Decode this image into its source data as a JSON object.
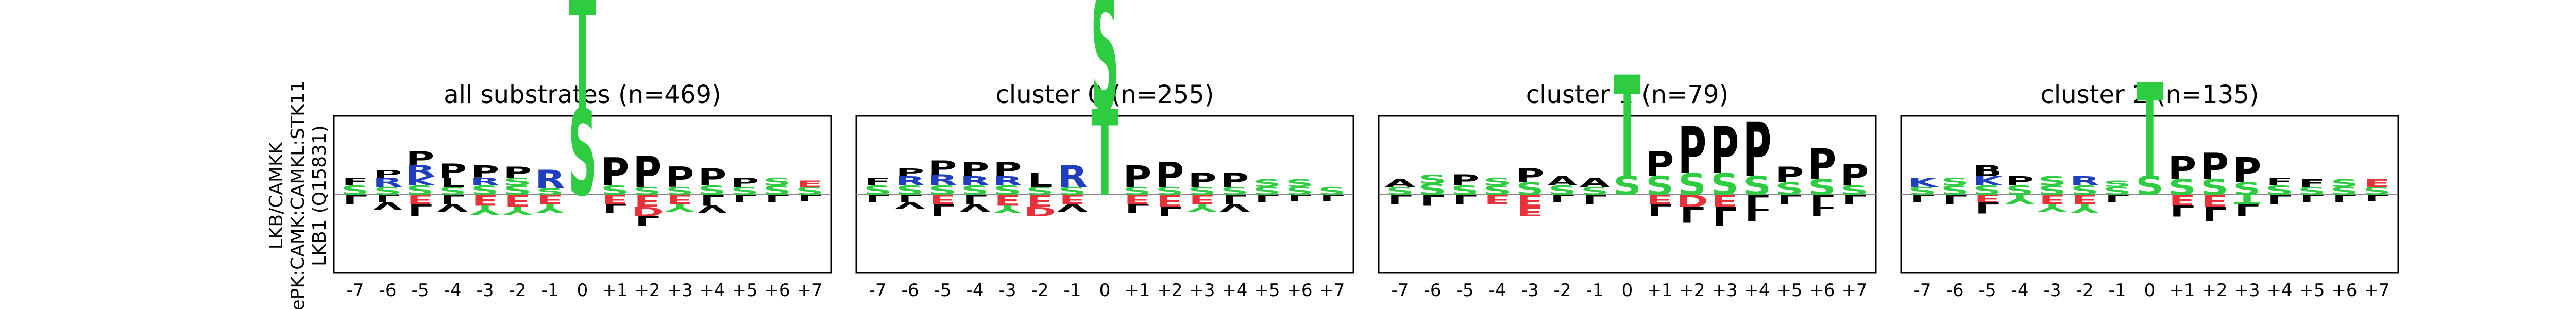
{
  "figure": {
    "ylabel_lines": [
      "LKB/CAMKK",
      "ePK:CAMK:CAMKL:STK11",
      "LKB1 (Q15831)"
    ]
  },
  "colors": {
    "S": "#2ecc40",
    "T": "#2ecc40",
    "G": "#2ecc40",
    "Y": "#2ecc40",
    "C": "#2ecc40",
    "N": "#b04fd4",
    "Q": "#b04fd4",
    "K": "#1f3fbf",
    "R": "#1f3fbf",
    "H": "#1f3fbf",
    "D": "#e8313a",
    "E": "#e8313a",
    "P": "#000000",
    "L": "#000000",
    "I": "#000000",
    "V": "#000000",
    "A": "#000000",
    "M": "#000000",
    "F": "#000000",
    "W": "#000000"
  },
  "chart_data": [
    {
      "type": "sequence-logo",
      "title": "all substrates (n=469)",
      "positions": [
        "-7",
        "-6",
        "-5",
        "-4",
        "-3",
        "-2",
        "-1",
        "0",
        "+1",
        "+2",
        "+3",
        "+4",
        "+5",
        "+6",
        "+7"
      ],
      "up": [
        [
          [
            "S",
            0.06
          ],
          [
            "F",
            0.05
          ]
        ],
        [
          [
            "S",
            0.05
          ],
          [
            "R",
            0.06
          ],
          [
            "P",
            0.05
          ]
        ],
        [
          [
            "S",
            0.06
          ],
          [
            "K",
            0.06
          ],
          [
            "R",
            0.07
          ],
          [
            "P",
            0.09
          ]
        ],
        [
          [
            "S",
            0.05
          ],
          [
            "L",
            0.06
          ],
          [
            "P",
            0.09
          ]
        ],
        [
          [
            "S",
            0.06
          ],
          [
            "R",
            0.05
          ],
          [
            "P",
            0.08
          ]
        ],
        [
          [
            "S",
            0.06
          ],
          [
            "S",
            0.05
          ],
          [
            "P",
            0.07
          ]
        ],
        [
          [
            "S",
            0.04
          ],
          [
            "R",
            0.12
          ]
        ],
        [
          [
            "S",
            0.55
          ],
          [
            "T",
            0.75
          ]
        ],
        [
          [
            "S",
            0.06
          ],
          [
            "P",
            0.18
          ]
        ],
        [
          [
            "S",
            0.05
          ],
          [
            "P",
            0.2
          ]
        ],
        [
          [
            "S",
            0.05
          ],
          [
            "P",
            0.13
          ]
        ],
        [
          [
            "S",
            0.06
          ],
          [
            "P",
            0.11
          ]
        ],
        [
          [
            "S",
            0.05
          ],
          [
            "P",
            0.06
          ]
        ],
        [
          [
            "S",
            0.06
          ],
          [
            "S",
            0.05
          ]
        ],
        [
          [
            "S",
            0.05
          ],
          [
            "E",
            0.04
          ]
        ]
      ],
      "down": [
        [
          [
            "L",
            0.06
          ]
        ],
        [
          [
            "L",
            0.05
          ],
          [
            "V",
            0.05
          ]
        ],
        [
          [
            "E",
            0.06
          ],
          [
            "L",
            0.08
          ]
        ],
        [
          [
            "L",
            0.06
          ],
          [
            "V",
            0.05
          ]
        ],
        [
          [
            "E",
            0.07
          ],
          [
            "Y",
            0.06
          ]
        ],
        [
          [
            "E",
            0.08
          ],
          [
            "Y",
            0.05
          ]
        ],
        [
          [
            "E",
            0.06
          ],
          [
            "Y",
            0.06
          ]
        ],
        [],
        [
          [
            "E",
            0.06
          ],
          [
            "L",
            0.06
          ]
        ],
        [
          [
            "E",
            0.08
          ],
          [
            "D",
            0.06
          ],
          [
            "L",
            0.06
          ]
        ],
        [
          [
            "E",
            0.06
          ],
          [
            "Y",
            0.05
          ]
        ],
        [
          [
            "L",
            0.07
          ],
          [
            "V",
            0.05
          ]
        ],
        [
          [
            "L",
            0.05
          ]
        ],
        [
          [
            "L",
            0.05
          ]
        ],
        [
          [
            "L",
            0.04
          ]
        ]
      ]
    },
    {
      "type": "sequence-logo",
      "title": "cluster 0 (n=255)",
      "positions": [
        "-7",
        "-6",
        "-5",
        "-4",
        "-3",
        "-2",
        "-1",
        "0",
        "+1",
        "+2",
        "+3",
        "+4",
        "+5",
        "+6",
        "+7"
      ],
      "up": [
        [
          [
            "S",
            0.06
          ],
          [
            "F",
            0.05
          ]
        ],
        [
          [
            "S",
            0.06
          ],
          [
            "R",
            0.06
          ],
          [
            "P",
            0.05
          ]
        ],
        [
          [
            "S",
            0.06
          ],
          [
            "R",
            0.07
          ],
          [
            "P",
            0.09
          ]
        ],
        [
          [
            "S",
            0.06
          ],
          [
            "R",
            0.06
          ],
          [
            "P",
            0.09
          ]
        ],
        [
          [
            "S",
            0.06
          ],
          [
            "R",
            0.06
          ],
          [
            "P",
            0.09
          ]
        ],
        [
          [
            "S",
            0.05
          ],
          [
            "L",
            0.09
          ]
        ],
        [
          [
            "S",
            0.05
          ],
          [
            "R",
            0.14
          ]
        ],
        [
          [
            "T",
            0.55
          ],
          [
            "S",
            0.75
          ]
        ],
        [
          [
            "S",
            0.05
          ],
          [
            "P",
            0.14
          ]
        ],
        [
          [
            "S",
            0.05
          ],
          [
            "P",
            0.16
          ]
        ],
        [
          [
            "S",
            0.05
          ],
          [
            "P",
            0.09
          ]
        ],
        [
          [
            "S",
            0.05
          ],
          [
            "P",
            0.09
          ]
        ],
        [
          [
            "S",
            0.05
          ],
          [
            "S",
            0.05
          ]
        ],
        [
          [
            "S",
            0.05
          ],
          [
            "S",
            0.05
          ]
        ],
        [
          [
            "S",
            0.05
          ]
        ]
      ],
      "down": [
        [
          [
            "L",
            0.05
          ]
        ],
        [
          [
            "L",
            0.05
          ],
          [
            "V",
            0.04
          ]
        ],
        [
          [
            "E",
            0.06
          ],
          [
            "L",
            0.08
          ]
        ],
        [
          [
            "L",
            0.06
          ],
          [
            "V",
            0.05
          ]
        ],
        [
          [
            "E",
            0.07
          ],
          [
            "Y",
            0.05
          ]
        ],
        [
          [
            "E",
            0.08
          ],
          [
            "D",
            0.06
          ]
        ],
        [
          [
            "E",
            0.06
          ],
          [
            "V",
            0.05
          ]
        ],
        [],
        [
          [
            "E",
            0.06
          ],
          [
            "L",
            0.06
          ]
        ],
        [
          [
            "E",
            0.08
          ],
          [
            "L",
            0.06
          ]
        ],
        [
          [
            "E",
            0.06
          ],
          [
            "Y",
            0.05
          ]
        ],
        [
          [
            "L",
            0.06
          ],
          [
            "V",
            0.05
          ]
        ],
        [
          [
            "L",
            0.05
          ]
        ],
        [
          [
            "L",
            0.04
          ]
        ],
        [
          [
            "L",
            0.04
          ]
        ]
      ]
    },
    {
      "type": "sequence-logo",
      "title": "cluster 1 (n=79)",
      "positions": [
        "-7",
        "-6",
        "-5",
        "-4",
        "-3",
        "-2",
        "-1",
        "0",
        "+1",
        "+2",
        "+3",
        "+4",
        "+5",
        "+6",
        "+7"
      ],
      "up": [
        [
          [
            "S",
            0.05
          ],
          [
            "A",
            0.05
          ]
        ],
        [
          [
            "S",
            0.07
          ],
          [
            "S",
            0.06
          ]
        ],
        [
          [
            "S",
            0.06
          ],
          [
            "P",
            0.07
          ]
        ],
        [
          [
            "S",
            0.06
          ],
          [
            "S",
            0.05
          ]
        ],
        [
          [
            "S",
            0.08
          ],
          [
            "P",
            0.09
          ]
        ],
        [
          [
            "S",
            0.06
          ],
          [
            "A",
            0.06
          ]
        ],
        [
          [
            "S",
            0.05
          ],
          [
            "A",
            0.06
          ]
        ],
        [
          [
            "S",
            0.12
          ],
          [
            "T",
            0.65
          ]
        ],
        [
          [
            "S",
            0.12
          ],
          [
            "P",
            0.16
          ]
        ],
        [
          [
            "S",
            0.14
          ],
          [
            "P",
            0.3
          ]
        ],
        [
          [
            "S",
            0.14
          ],
          [
            "P",
            0.3
          ]
        ],
        [
          [
            "S",
            0.12
          ],
          [
            "P",
            0.35
          ]
        ],
        [
          [
            "S",
            0.08
          ],
          [
            "P",
            0.1
          ]
        ],
        [
          [
            "S",
            0.1
          ],
          [
            "P",
            0.2
          ]
        ],
        [
          [
            "S",
            0.06
          ],
          [
            "P",
            0.14
          ]
        ]
      ],
      "down": [
        [
          [
            "L",
            0.06
          ]
        ],
        [
          [
            "L",
            0.07
          ]
        ],
        [
          [
            "L",
            0.06
          ]
        ],
        [
          [
            "E",
            0.06
          ]
        ],
        [
          [
            "E",
            0.08
          ],
          [
            "E",
            0.06
          ]
        ],
        [
          [
            "L",
            0.05
          ]
        ],
        [
          [
            "L",
            0.06
          ]
        ],
        [],
        [
          [
            "E",
            0.06
          ],
          [
            "L",
            0.08
          ]
        ],
        [
          [
            "D",
            0.08
          ],
          [
            "L",
            0.1
          ]
        ],
        [
          [
            "E",
            0.08
          ],
          [
            "L",
            0.12
          ]
        ],
        [
          [
            "L",
            0.09
          ],
          [
            "L",
            0.08
          ]
        ],
        [
          [
            "L",
            0.06
          ]
        ],
        [
          [
            "L",
            0.08
          ],
          [
            "L",
            0.06
          ]
        ],
        [
          [
            "L",
            0.06
          ]
        ]
      ]
    },
    {
      "type": "sequence-logo",
      "title": "cluster 2 (n=135)",
      "positions": [
        "-7",
        "-6",
        "-5",
        "-4",
        "-3",
        "-2",
        "-1",
        "0",
        "+1",
        "+2",
        "+3",
        "+4",
        "+5",
        "+6",
        "+7"
      ],
      "up": [
        [
          [
            "S",
            0.05
          ],
          [
            "K",
            0.06
          ]
        ],
        [
          [
            "S",
            0.06
          ],
          [
            "S",
            0.05
          ]
        ],
        [
          [
            "S",
            0.06
          ],
          [
            "K",
            0.06
          ],
          [
            "B",
            0.07
          ]
        ],
        [
          [
            "S",
            0.06
          ],
          [
            "P",
            0.06
          ]
        ],
        [
          [
            "S",
            0.06
          ],
          [
            "S",
            0.06
          ]
        ],
        [
          [
            "S",
            0.06
          ],
          [
            "R",
            0.06
          ]
        ],
        [
          [
            "S",
            0.05
          ],
          [
            "S",
            0.04
          ]
        ],
        [
          [
            "S",
            0.12
          ],
          [
            "T",
            0.6
          ]
        ],
        [
          [
            "S",
            0.1
          ],
          [
            "P",
            0.15
          ]
        ],
        [
          [
            "S",
            0.1
          ],
          [
            "P",
            0.17
          ]
        ],
        [
          [
            "S",
            0.08
          ],
          [
            "P",
            0.16
          ]
        ],
        [
          [
            "S",
            0.06
          ],
          [
            "F",
            0.05
          ]
        ],
        [
          [
            "S",
            0.05
          ],
          [
            "F",
            0.05
          ]
        ],
        [
          [
            "S",
            0.05
          ],
          [
            "S",
            0.05
          ]
        ],
        [
          [
            "S",
            0.05
          ],
          [
            "E",
            0.05
          ]
        ]
      ],
      "down": [
        [
          [
            "L",
            0.05
          ]
        ],
        [
          [
            "L",
            0.06
          ]
        ],
        [
          [
            "E",
            0.05
          ],
          [
            "L",
            0.07
          ]
        ],
        [
          [
            "Y",
            0.06
          ]
        ],
        [
          [
            "E",
            0.06
          ],
          [
            "Y",
            0.05
          ]
        ],
        [
          [
            "E",
            0.06
          ],
          [
            "Y",
            0.06
          ]
        ],
        [
          [
            "L",
            0.05
          ]
        ],
        [],
        [
          [
            "E",
            0.07
          ],
          [
            "L",
            0.07
          ]
        ],
        [
          [
            "E",
            0.08
          ],
          [
            "L",
            0.09
          ]
        ],
        [
          [
            "T",
            0.06
          ],
          [
            "L",
            0.08
          ]
        ],
        [
          [
            "L",
            0.06
          ]
        ],
        [
          [
            "L",
            0.05
          ]
        ],
        [
          [
            "L",
            0.05
          ]
        ],
        [
          [
            "L",
            0.04
          ]
        ]
      ]
    }
  ]
}
